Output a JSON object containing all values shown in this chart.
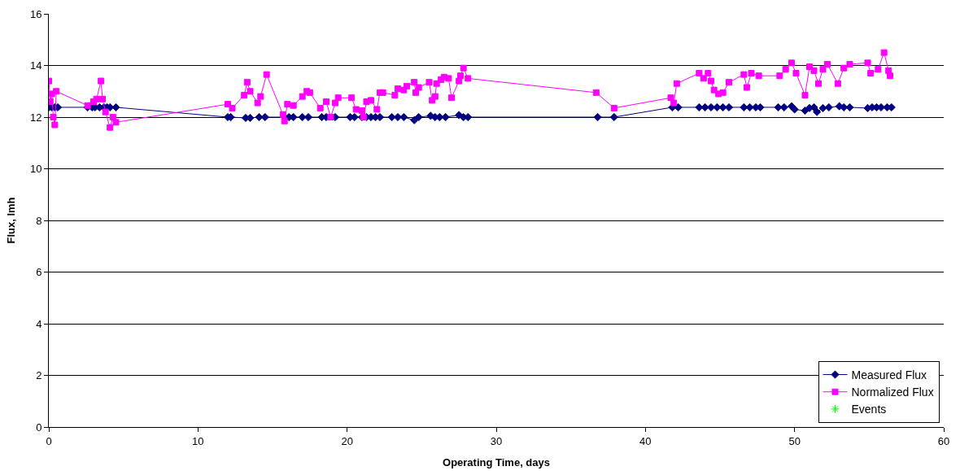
{
  "chart_data": {
    "type": "line",
    "xlabel": "Operating Time, days",
    "ylabel": "Flux, lmh",
    "xlim": [
      0,
      60
    ],
    "xticks": [
      0,
      10,
      20,
      30,
      40,
      50,
      60
    ],
    "ylim": [
      0,
      16
    ],
    "yticks": [
      0,
      2,
      4,
      6,
      8,
      10,
      12,
      14,
      16
    ],
    "grid": "y",
    "legend": "bottom right",
    "series": [
      {
        "name": "Measured Flux",
        "color": "#000080",
        "marker": "diamond",
        "x": [
          0,
          0.2,
          0.4,
          0.6,
          2.6,
          2.9,
          3.1,
          3.4,
          3.7,
          3.9,
          4.1,
          4.5,
          12.0,
          12.2,
          13.2,
          13.5,
          14.1,
          14.5,
          15.8,
          16.1,
          16.4,
          17.0,
          17.4,
          18.3,
          18.6,
          19.2,
          20.2,
          20.5,
          21.0,
          21.3,
          21.6,
          21.9,
          22.2,
          23.0,
          23.4,
          23.8,
          24.5,
          24.8,
          25.6,
          25.9,
          26.2,
          26.6,
          27.5,
          27.8,
          28.1,
          36.8,
          37.9,
          41.8,
          42.2,
          43.6,
          44.0,
          44.4,
          44.8,
          45.2,
          45.6,
          46.6,
          47.0,
          47.4,
          47.7,
          48.9,
          49.3,
          49.8,
          50.0,
          50.7,
          51.0,
          51.3,
          51.5,
          51.9,
          52.3,
          53.0,
          53.3,
          53.7,
          54.9,
          55.2,
          55.5,
          55.8,
          56.2,
          56.5
        ],
        "values": [
          12.38,
          12.38,
          12.38,
          12.38,
          12.38,
          12.38,
          12.38,
          12.38,
          12.38,
          12.38,
          12.38,
          12.38,
          12.0,
          12.0,
          11.97,
          11.97,
          12.0,
          12.0,
          12.0,
          12.0,
          12.0,
          12.0,
          12.0,
          12.0,
          12.0,
          12.0,
          12.0,
          12.0,
          12.0,
          12.0,
          12.0,
          12.0,
          12.0,
          12.0,
          12.0,
          12.0,
          11.88,
          12.0,
          12.05,
          12.0,
          12.0,
          12.0,
          12.08,
          12.0,
          12.0,
          12.0,
          12.0,
          12.38,
          12.38,
          12.38,
          12.38,
          12.38,
          12.38,
          12.38,
          12.38,
          12.38,
          12.38,
          12.38,
          12.38,
          12.38,
          12.38,
          12.42,
          12.3,
          12.25,
          12.35,
          12.38,
          12.2,
          12.35,
          12.38,
          12.42,
          12.38,
          12.38,
          12.35,
          12.38,
          12.38,
          12.38,
          12.38,
          12.38
        ]
      },
      {
        "name": "Normalized Flux",
        "color": "#ff00ff",
        "marker": "square",
        "x": [
          0,
          0.1,
          0.2,
          0.3,
          0.4,
          0.5,
          2.6,
          3.0,
          3.2,
          3.5,
          3.6,
          3.8,
          4.1,
          4.3,
          4.5,
          12.0,
          12.3,
          13.1,
          13.3,
          13.5,
          14.0,
          14.2,
          14.6,
          15.7,
          15.8,
          16.0,
          16.4,
          17.0,
          17.3,
          17.5,
          18.2,
          18.6,
          18.9,
          19.2,
          19.4,
          20.3,
          20.6,
          21.0,
          21.1,
          21.3,
          21.6,
          22.0,
          22.2,
          22.4,
          23.2,
          23.4,
          23.8,
          24.0,
          24.5,
          24.6,
          24.8,
          25.5,
          25.7,
          25.9,
          26.0,
          26.3,
          26.5,
          26.8,
          27.0,
          27.5,
          27.6,
          27.8,
          28.1,
          36.7,
          37.9,
          41.7,
          41.9,
          42.1,
          43.6,
          43.9,
          44.2,
          44.4,
          44.6,
          44.9,
          45.2,
          45.6,
          46.6,
          46.8,
          47.1,
          47.6,
          49.0,
          49.4,
          49.8,
          50.1,
          50.7,
          51.0,
          51.3,
          51.6,
          51.9,
          52.2,
          52.9,
          53.3,
          53.7,
          54.9,
          55.1,
          55.6,
          56.0,
          56.3,
          56.4
        ],
        "values": [
          13.4,
          12.6,
          12.9,
          12.0,
          11.7,
          13.0,
          12.45,
          12.6,
          12.7,
          13.4,
          12.7,
          12.2,
          11.6,
          12.0,
          11.8,
          12.5,
          12.35,
          12.85,
          13.35,
          13.0,
          12.55,
          12.8,
          13.65,
          12.1,
          11.85,
          12.5,
          12.45,
          12.8,
          13.0,
          12.95,
          12.35,
          12.6,
          12.0,
          12.55,
          12.75,
          12.75,
          12.3,
          12.25,
          12.0,
          12.6,
          12.65,
          12.3,
          12.95,
          12.95,
          12.85,
          13.1,
          13.05,
          13.2,
          13.35,
          12.95,
          13.15,
          13.35,
          12.65,
          12.8,
          13.3,
          13.45,
          13.55,
          13.5,
          12.75,
          13.4,
          13.6,
          13.9,
          13.5,
          12.95,
          12.35,
          12.75,
          12.55,
          13.3,
          13.7,
          13.5,
          13.7,
          13.4,
          13.05,
          12.9,
          12.95,
          13.35,
          13.65,
          13.15,
          13.7,
          13.6,
          13.6,
          13.85,
          14.1,
          13.7,
          12.85,
          13.95,
          13.8,
          13.3,
          13.85,
          14.05,
          13.3,
          13.9,
          14.05,
          14.1,
          13.7,
          13.85,
          14.5,
          13.8,
          13.6
        ]
      },
      {
        "name": "Events",
        "color": "#00ff00",
        "marker": "star",
        "line_style": "none"
      }
    ]
  }
}
